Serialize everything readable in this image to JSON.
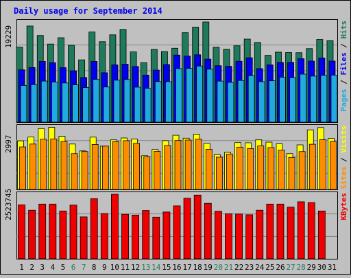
{
  "chart_data": {
    "type": "bar",
    "title": "Daily usage for September 2014",
    "categories": [
      "1",
      "2",
      "3",
      "4",
      "5",
      "6",
      "7",
      "8",
      "9",
      "10",
      "11",
      "12",
      "13",
      "14",
      "15",
      "16",
      "17",
      "18",
      "19",
      "20",
      "21",
      "22",
      "23",
      "24",
      "25",
      "26",
      "27",
      "28",
      "29",
      "30",
      "31"
    ],
    "weekend_days": [
      "6",
      "7",
      "13",
      "14",
      "20",
      "21",
      "27",
      "28"
    ],
    "panels": [
      {
        "id": "hits-files-pages",
        "max_label": "19229",
        "ymax": 19229,
        "right_labels": [
          "Pages",
          "Files",
          "Hits"
        ],
        "series": [
          {
            "name": "Hits",
            "color": "#1e7a5a",
            "values": [
              14410,
              18450,
              16630,
              14990,
              16200,
              14760,
              11960,
              17310,
              15440,
              16760,
              17800,
              13490,
              11420,
              13970,
              13550,
              14190,
              17170,
              18240,
              19229,
              14380,
              14000,
              14660,
              15940,
              15300,
              12820,
              13440,
              13360,
              13330,
              14120,
              15860,
              15660
            ]
          },
          {
            "name": "Files",
            "color": "#0000ee",
            "values": [
              10050,
              10480,
              11670,
              11420,
              10460,
              9860,
              8570,
              11660,
              9490,
              10990,
              11130,
              10680,
              9040,
              10000,
              11060,
              12880,
              12680,
              12930,
              12100,
              10840,
              10720,
              11700,
              12360,
              10280,
              11000,
              11460,
              11480,
              12180,
              11720,
              12320,
              11730
            ]
          },
          {
            "name": "Pages",
            "color": "#22aae0",
            "values": [
              7040,
              7210,
              7890,
              7690,
              7530,
              7170,
              6640,
              8210,
              6750,
              8060,
              8190,
              6720,
              6500,
              7800,
              7770,
              10280,
              10330,
              10770,
              10170,
              7880,
              7640,
              8010,
              8930,
              7770,
              7950,
              8630,
              8540,
              9220,
              8840,
              8980,
              9010
            ]
          }
        ]
      },
      {
        "id": "visits-sites",
        "max_label": "2997",
        "ymax": 2997,
        "right_labels": [
          "Sites",
          "Visits"
        ],
        "series": [
          {
            "name": "Visits",
            "color": "#ffff00",
            "values": [
              2330,
              2520,
              2920,
              2980,
              2550,
              2180,
              1850,
              2510,
              2080,
              2380,
              2470,
              2420,
              1620,
              1920,
              2340,
              2600,
              2460,
              2650,
              2210,
              1670,
              1780,
              2250,
              2240,
              2380,
              2270,
              2190,
              1720,
              2140,
              2860,
              2970,
              2450
            ]
          },
          {
            "name": "Sites",
            "color": "#ff8c00",
            "values": [
              2040,
              2180,
              2410,
              2420,
              2300,
              1720,
              1820,
              2160,
              2080,
              2290,
              2340,
              2210,
              1560,
              1830,
              2110,
              2350,
              2370,
              2410,
              1930,
              1550,
              1700,
              2030,
              1960,
              2090,
              2010,
              1880,
              1540,
              1820,
              2170,
              2390,
              2300
            ]
          }
        ]
      },
      {
        "id": "kbytes",
        "max_label": "2523745",
        "ymax": 2523745,
        "right_labels": [
          "KBytes"
        ],
        "series": [
          {
            "name": "KBytes",
            "color": "#ee0000",
            "values": [
              2110000,
              1900000,
              2140000,
              2140000,
              1870000,
              2100000,
              1640000,
              2350000,
              1770000,
              2523745,
              1740000,
              1710000,
              1890000,
              1630000,
              1830000,
              2070000,
              2370000,
              2490000,
              2170000,
              1860000,
              1760000,
              1750000,
              1720000,
              1900000,
              2140000,
              2140000,
              2020000,
              2230000,
              2200000,
              1870000,
              0
            ]
          }
        ]
      }
    ],
    "grid": true
  },
  "colors": {
    "background": "#c0c0c0",
    "plot": "#c0c0c0",
    "title": "#0000ee",
    "weekday_label": "#000000",
    "weekend_label": "#1e7a5a",
    "bar_outline": "#000000"
  }
}
